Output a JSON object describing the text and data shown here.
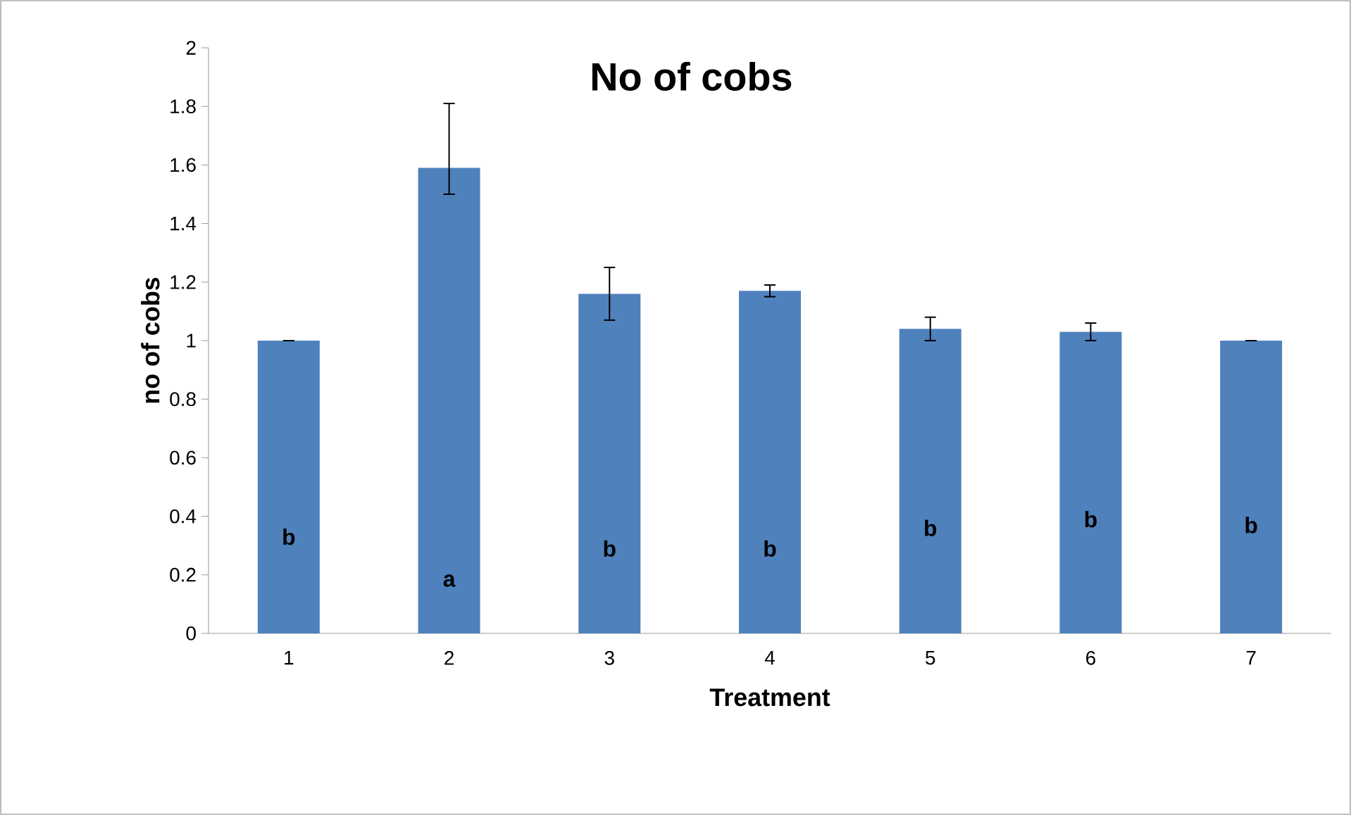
{
  "chart_data": {
    "type": "bar",
    "title": "No of cobs",
    "xlabel": "Treatment",
    "ylabel": "no of cobs",
    "categories": [
      "1",
      "2",
      "3",
      "4",
      "5",
      "6",
      "7"
    ],
    "values": [
      1.0,
      1.59,
      1.16,
      1.17,
      1.04,
      1.03,
      1.0
    ],
    "errors": [
      [
        1.0,
        1.0
      ],
      [
        1.5,
        1.81
      ],
      [
        1.07,
        1.25
      ],
      [
        1.15,
        1.19
      ],
      [
        1.0,
        1.08
      ],
      [
        1.0,
        1.06
      ],
      [
        1.0,
        1.0
      ]
    ],
    "color": "#4f81bd",
    "ylim": [
      0,
      2
    ],
    "yticks": [
      0,
      0.2,
      0.4,
      0.6,
      0.8,
      1,
      1.2,
      1.4,
      1.6,
      1.8,
      2
    ],
    "grid": false,
    "annotations": [
      "b",
      "a",
      "b",
      "b",
      "b",
      "b",
      "b"
    ]
  }
}
